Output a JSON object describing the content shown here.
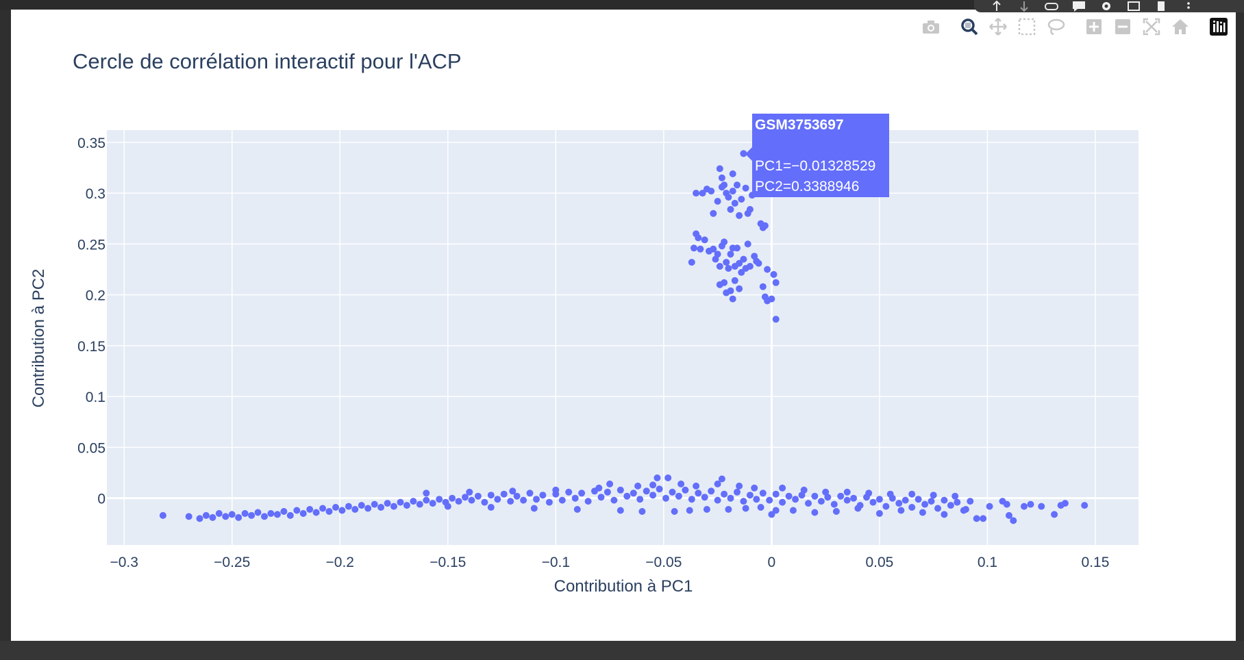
{
  "toolbar": {
    "extension_icons": [
      "upload-icon",
      "download-icon",
      "link-icon",
      "comment-icon",
      "gear-icon",
      "screen-share-icon",
      "clipboard-icon",
      "more-icon"
    ],
    "modebar_buttons": [
      "camera-icon",
      "zoom-icon",
      "pan-icon",
      "box-select-icon",
      "lasso-icon",
      "zoom-in-icon",
      "zoom-out-icon",
      "autoscale-icon",
      "reset-axes-icon",
      "plotly-logo-icon"
    ],
    "active_button": "zoom-icon",
    "icon_color": "#c7c7c7",
    "active_color": "#2a3f5f"
  },
  "chart_data": {
    "type": "scatter",
    "title": "Cercle de corrélation interactif pour l'ACP",
    "xlabel": "Contribution à PC1",
    "ylabel": "Contribution à PC2",
    "xlim": [
      -0.308,
      0.17
    ],
    "ylim": [
      -0.046,
      0.362
    ],
    "grid": true,
    "legend": "none",
    "colors": {
      "marker": "#636efa",
      "plot_bg": "#e5ecf6",
      "grid": "#ffffff",
      "text": "#2a3f5f"
    },
    "x_ticks": [
      -0.3,
      -0.25,
      -0.2,
      -0.15,
      -0.1,
      -0.05,
      0,
      0.05,
      0.1,
      0.15
    ],
    "x_tick_labels": [
      "−0.3",
      "−0.25",
      "−0.2",
      "−0.15",
      "−0.1",
      "−0.05",
      "0",
      "0.05",
      "0.1",
      "0.15"
    ],
    "y_ticks": [
      0,
      0.05,
      0.1,
      0.15,
      0.2,
      0.25,
      0.3,
      0.35
    ],
    "y_tick_labels": [
      "0",
      "0.05",
      "0.1",
      "0.15",
      "0.2",
      "0.25",
      "0.3",
      "0.35"
    ],
    "series": [
      {
        "points": [
          [
            -0.282,
            -0.017
          ],
          [
            -0.27,
            -0.018
          ],
          [
            -0.265,
            -0.02
          ],
          [
            -0.262,
            -0.017
          ],
          [
            -0.259,
            -0.019
          ],
          [
            -0.256,
            -0.015
          ],
          [
            -0.253,
            -0.018
          ],
          [
            -0.25,
            -0.016
          ],
          [
            -0.247,
            -0.019
          ],
          [
            -0.244,
            -0.015
          ],
          [
            -0.241,
            -0.017
          ],
          [
            -0.238,
            -0.014
          ],
          [
            -0.235,
            -0.018
          ],
          [
            -0.232,
            -0.015
          ],
          [
            -0.229,
            -0.016
          ],
          [
            -0.226,
            -0.013
          ],
          [
            -0.223,
            -0.017
          ],
          [
            -0.22,
            -0.012
          ],
          [
            -0.217,
            -0.015
          ],
          [
            -0.214,
            -0.011
          ],
          [
            -0.211,
            -0.014
          ],
          [
            -0.208,
            -0.01
          ],
          [
            -0.205,
            -0.013
          ],
          [
            -0.202,
            -0.009
          ],
          [
            -0.199,
            -0.012
          ],
          [
            -0.196,
            -0.008
          ],
          [
            -0.193,
            -0.011
          ],
          [
            -0.19,
            -0.007
          ],
          [
            -0.187,
            -0.01
          ],
          [
            -0.184,
            -0.006
          ],
          [
            -0.181,
            -0.009
          ],
          [
            -0.178,
            -0.005
          ],
          [
            -0.175,
            -0.008
          ],
          [
            -0.172,
            -0.004
          ],
          [
            -0.169,
            -0.007
          ],
          [
            -0.166,
            -0.003
          ],
          [
            -0.163,
            -0.006
          ],
          [
            -0.16,
            -0.002
          ],
          [
            -0.157,
            -0.005
          ],
          [
            -0.154,
            -0.001
          ],
          [
            -0.151,
            -0.004
          ],
          [
            -0.148,
            0.0
          ],
          [
            -0.145,
            -0.003
          ],
          [
            -0.142,
            0.001
          ],
          [
            -0.139,
            -0.002
          ],
          [
            -0.136,
            0.002
          ],
          [
            -0.133,
            -0.004
          ],
          [
            -0.13,
            0.003
          ],
          [
            -0.127,
            -0.001
          ],
          [
            -0.124,
            0.004
          ],
          [
            -0.121,
            -0.003
          ],
          [
            -0.118,
            0.002
          ],
          [
            -0.115,
            -0.002
          ],
          [
            -0.112,
            0.005
          ],
          [
            -0.109,
            -0.001
          ],
          [
            -0.106,
            0.003
          ],
          [
            -0.103,
            -0.004
          ],
          [
            -0.1,
            0.004
          ],
          [
            -0.097,
            -0.002
          ],
          [
            -0.094,
            0.006
          ],
          [
            -0.091,
            0.0
          ],
          [
            -0.088,
            0.005
          ],
          [
            -0.085,
            -0.003
          ],
          [
            -0.082,
            0.007
          ],
          [
            -0.079,
            0.001
          ],
          [
            -0.076,
            0.006
          ],
          [
            -0.073,
            -0.002
          ],
          [
            -0.07,
            0.008
          ],
          [
            -0.067,
            0.002
          ],
          [
            -0.064,
            0.005
          ],
          [
            -0.061,
            -0.001
          ],
          [
            -0.058,
            0.007
          ],
          [
            -0.055,
            0.003
          ],
          [
            -0.052,
            0.009
          ],
          [
            -0.049,
            0.0
          ],
          [
            -0.046,
            0.006
          ],
          [
            -0.043,
            0.002
          ],
          [
            -0.04,
            0.008
          ],
          [
            -0.037,
            -0.001
          ],
          [
            -0.034,
            0.005
          ],
          [
            -0.031,
            0.001
          ],
          [
            -0.028,
            0.007
          ],
          [
            -0.025,
            -0.002
          ],
          [
            -0.022,
            0.004
          ],
          [
            -0.019,
            0.0
          ],
          [
            -0.016,
            0.006
          ],
          [
            -0.013,
            -0.003
          ],
          [
            -0.01,
            0.003
          ],
          [
            -0.007,
            -0.001
          ],
          [
            -0.004,
            0.005
          ],
          [
            -0.001,
            -0.002
          ],
          [
            0.002,
            0.004
          ],
          [
            0.005,
            -0.004
          ],
          [
            0.008,
            0.002
          ],
          [
            0.011,
            -0.001
          ],
          [
            0.014,
            0.003
          ],
          [
            0.017,
            -0.005
          ],
          [
            0.02,
            0.002
          ],
          [
            0.023,
            -0.003
          ],
          [
            0.026,
            0.001
          ],
          [
            0.029,
            -0.006
          ],
          [
            0.032,
            0.002
          ],
          [
            0.035,
            -0.002
          ],
          [
            0.038,
            0.0
          ],
          [
            0.041,
            -0.007
          ],
          [
            0.044,
            0.001
          ],
          [
            0.047,
            -0.004
          ],
          [
            0.05,
            -0.001
          ],
          [
            0.053,
            -0.008
          ],
          [
            0.056,
            0.0
          ],
          [
            0.059,
            -0.005
          ],
          [
            0.062,
            -0.002
          ],
          [
            0.065,
            -0.009
          ],
          [
            0.068,
            -0.001
          ],
          [
            0.071,
            -0.006
          ],
          [
            0.074,
            -0.003
          ],
          [
            0.077,
            -0.01
          ],
          [
            0.08,
            -0.002
          ],
          [
            0.083,
            -0.007
          ],
          [
            0.086,
            -0.004
          ],
          [
            0.089,
            -0.012
          ],
          [
            0.092,
            -0.003
          ],
          [
            0.095,
            -0.02
          ],
          [
            0.098,
            -0.02
          ],
          [
            0.101,
            -0.008
          ],
          [
            0.107,
            -0.003
          ],
          [
            0.109,
            -0.006
          ],
          [
            0.11,
            -0.017
          ],
          [
            0.112,
            -0.022
          ],
          [
            0.117,
            -0.008
          ],
          [
            0.12,
            -0.006
          ],
          [
            0.125,
            -0.008
          ],
          [
            0.131,
            -0.016
          ],
          [
            0.134,
            -0.007
          ],
          [
            0.136,
            -0.005
          ],
          [
            0.145,
            -0.007
          ],
          [
            -0.16,
            0.005
          ],
          [
            -0.15,
            -0.008
          ],
          [
            -0.14,
            0.006
          ],
          [
            -0.13,
            -0.009
          ],
          [
            -0.12,
            0.007
          ],
          [
            -0.11,
            -0.01
          ],
          [
            -0.1,
            0.008
          ],
          [
            -0.09,
            -0.011
          ],
          [
            -0.08,
            0.01
          ],
          [
            -0.075,
            0.014
          ],
          [
            -0.07,
            -0.012
          ],
          [
            -0.062,
            0.012
          ],
          [
            -0.06,
            -0.013
          ],
          [
            -0.055,
            0.013
          ],
          [
            -0.053,
            0.02
          ],
          [
            -0.048,
            0.02
          ],
          [
            -0.045,
            -0.013
          ],
          [
            -0.042,
            0.014
          ],
          [
            -0.038,
            -0.012
          ],
          [
            -0.035,
            0.012
          ],
          [
            -0.03,
            -0.011
          ],
          [
            -0.025,
            0.014
          ],
          [
            -0.023,
            0.019
          ],
          [
            -0.02,
            -0.011
          ],
          [
            -0.015,
            0.012
          ],
          [
            -0.012,
            -0.01
          ],
          [
            -0.008,
            0.01
          ],
          [
            -0.005,
            -0.009
          ],
          [
            0.0,
            -0.016
          ],
          [
            0.002,
            -0.012
          ],
          [
            0.005,
            0.01
          ],
          [
            0.01,
            -0.012
          ],
          [
            0.015,
            0.008
          ],
          [
            0.02,
            -0.014
          ],
          [
            0.025,
            0.006
          ],
          [
            0.03,
            -0.013
          ],
          [
            0.035,
            0.006
          ],
          [
            0.04,
            -0.01
          ],
          [
            0.045,
            0.005
          ],
          [
            0.05,
            -0.015
          ],
          [
            0.055,
            0.004
          ],
          [
            0.06,
            -0.012
          ],
          [
            0.065,
            0.004
          ],
          [
            0.07,
            -0.014
          ],
          [
            0.075,
            0.003
          ],
          [
            0.08,
            -0.016
          ],
          [
            0.085,
            0.002
          ],
          [
            0.09,
            -0.011
          ],
          [
            -0.032,
            0.3
          ],
          [
            -0.028,
            0.302
          ],
          [
            -0.027,
            0.28
          ],
          [
            -0.025,
            0.292
          ],
          [
            -0.024,
            0.324
          ],
          [
            -0.023,
            0.315
          ],
          [
            -0.022,
            0.308
          ],
          [
            -0.021,
            0.3
          ],
          [
            -0.02,
            0.296
          ],
          [
            -0.019,
            0.284
          ],
          [
            -0.018,
            0.302
          ],
          [
            -0.017,
            0.29
          ],
          [
            -0.016,
            0.308
          ],
          [
            -0.015,
            0.278
          ],
          [
            -0.014,
            0.294
          ],
          [
            -0.013,
            0.3389
          ],
          [
            -0.012,
            0.305
          ],
          [
            -0.011,
            0.28
          ],
          [
            -0.01,
            0.284
          ],
          [
            -0.009,
            0.298
          ],
          [
            -0.035,
            0.26
          ],
          [
            -0.034,
            0.256
          ],
          [
            -0.033,
            0.245
          ],
          [
            -0.031,
            0.254
          ],
          [
            -0.029,
            0.243
          ],
          [
            -0.027,
            0.245
          ],
          [
            -0.026,
            0.235
          ],
          [
            -0.025,
            0.24
          ],
          [
            -0.024,
            0.228
          ],
          [
            -0.023,
            0.248
          ],
          [
            -0.022,
            0.252
          ],
          [
            -0.021,
            0.232
          ],
          [
            -0.02,
            0.226
          ],
          [
            -0.019,
            0.24
          ],
          [
            -0.018,
            0.246
          ],
          [
            -0.017,
            0.228
          ],
          [
            -0.016,
            0.246
          ],
          [
            -0.015,
            0.231
          ],
          [
            -0.014,
            0.222
          ],
          [
            -0.013,
            0.235
          ],
          [
            -0.012,
            0.226
          ],
          [
            -0.011,
            0.25
          ],
          [
            -0.01,
            0.228
          ],
          [
            -0.008,
            0.238
          ],
          [
            -0.007,
            0.233
          ],
          [
            -0.006,
            0.231
          ],
          [
            -0.005,
            0.27
          ],
          [
            -0.004,
            0.266
          ],
          [
            -0.003,
            0.268
          ],
          [
            -0.002,
            0.225
          ],
          [
            -0.036,
            0.246
          ],
          [
            -0.037,
            0.232
          ],
          [
            -0.024,
            0.21
          ],
          [
            -0.022,
            0.212
          ],
          [
            -0.021,
            0.202
          ],
          [
            -0.019,
            0.204
          ],
          [
            -0.018,
            0.196
          ],
          [
            -0.017,
            0.214
          ],
          [
            -0.015,
            0.206
          ],
          [
            -0.004,
            0.208
          ],
          [
            -0.003,
            0.198
          ],
          [
            -0.002,
            0.194
          ],
          [
            0.0,
            0.196
          ],
          [
            0.001,
            0.22
          ],
          [
            0.002,
            0.212
          ],
          [
            0.002,
            0.176
          ],
          [
            -0.035,
            0.3
          ],
          [
            -0.03,
            0.304
          ],
          [
            -0.023,
            0.306
          ],
          [
            -0.018,
            0.319
          ]
        ]
      }
    ],
    "hover": {
      "name": "GSM3753697",
      "line1": "PC1=−0.01328529",
      "line2": "PC2=0.3388946"
    }
  }
}
